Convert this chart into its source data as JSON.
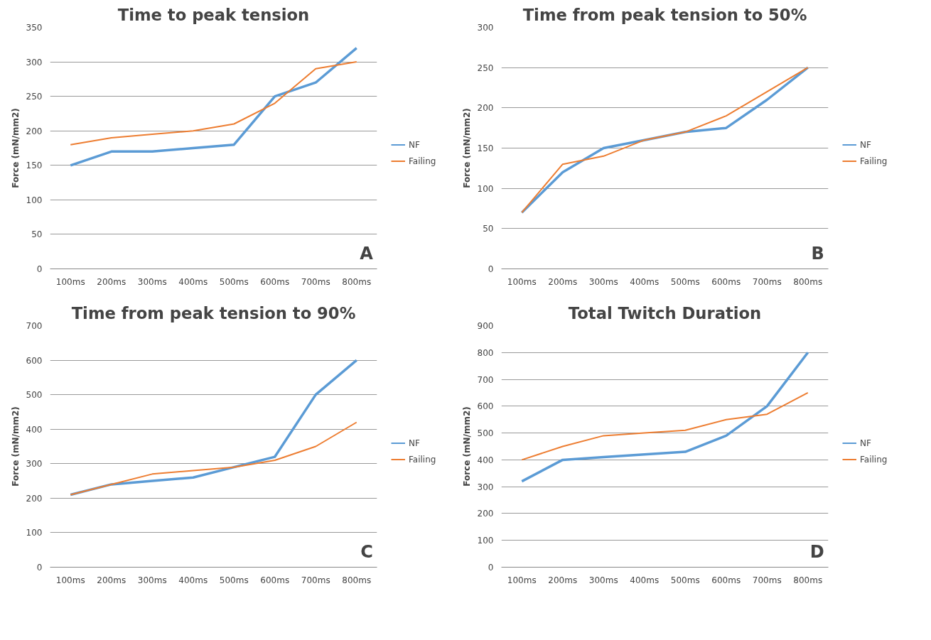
{
  "chart_data": [
    {
      "type": "line",
      "title": "Time to peak tension",
      "ylabel": "Force (mN/mm2)",
      "categories": [
        "100ms",
        "200ms",
        "300ms",
        "400ms",
        "500ms",
        "600ms",
        "700ms",
        "800ms"
      ],
      "series": [
        {
          "name": "NF",
          "color": "#5b9bd5",
          "values": [
            150,
            170,
            170,
            175,
            180,
            250,
            270,
            320
          ]
        },
        {
          "name": "Failing",
          "color": "#ed7d31",
          "values": [
            180,
            190,
            195,
            200,
            210,
            240,
            290,
            300
          ]
        }
      ],
      "ylim": [
        0,
        350
      ],
      "yticks": [
        0,
        50,
        100,
        150,
        200,
        250,
        300,
        350
      ],
      "grid": "y",
      "legend": "right",
      "annotations": [
        "A"
      ]
    },
    {
      "type": "line",
      "title": "Time from peak tension to 50%",
      "ylabel": "Force (mN/mm2)",
      "categories": [
        "100ms",
        "200ms",
        "300ms",
        "400ms",
        "500ms",
        "600ms",
        "700ms",
        "800ms"
      ],
      "series": [
        {
          "name": "NF",
          "color": "#5b9bd5",
          "values": [
            70,
            120,
            150,
            160,
            170,
            175,
            210,
            250
          ]
        },
        {
          "name": "Failing",
          "color": "#ed7d31",
          "values": [
            70,
            130,
            140,
            160,
            170,
            190,
            220,
            250
          ]
        }
      ],
      "ylim": [
        0,
        300
      ],
      "yticks": [
        0,
        50,
        100,
        150,
        200,
        250,
        300
      ],
      "grid": "y",
      "legend": "right",
      "annotations": [
        "B"
      ]
    },
    {
      "type": "line",
      "title": "Time from peak tension to 90%",
      "ylabel": "Force (mN/mm2)",
      "categories": [
        "100ms",
        "200ms",
        "300ms",
        "400ms",
        "500ms",
        "600ms",
        "700ms",
        "800ms"
      ],
      "series": [
        {
          "name": "NF",
          "color": "#5b9bd5",
          "values": [
            210,
            240,
            250,
            260,
            290,
            320,
            500,
            600
          ]
        },
        {
          "name": "Failing",
          "color": "#ed7d31",
          "values": [
            210,
            240,
            270,
            280,
            290,
            310,
            350,
            420
          ]
        }
      ],
      "ylim": [
        0,
        700
      ],
      "yticks": [
        0,
        100,
        200,
        300,
        400,
        500,
        600,
        700
      ],
      "grid": "y",
      "legend": "right",
      "annotations": [
        "C"
      ]
    },
    {
      "type": "line",
      "title": "Total Twitch Duration",
      "ylabel": "Force (mN/mm2)",
      "categories": [
        "100ms",
        "200ms",
        "300ms",
        "400ms",
        "500ms",
        "600ms",
        "700ms",
        "800ms"
      ],
      "series": [
        {
          "name": "NF",
          "color": "#5b9bd5",
          "values": [
            320,
            400,
            410,
            420,
            430,
            490,
            600,
            800
          ]
        },
        {
          "name": "Failing",
          "color": "#ed7d31",
          "values": [
            400,
            450,
            490,
            500,
            510,
            550,
            570,
            650
          ]
        }
      ],
      "ylim": [
        0,
        900
      ],
      "yticks": [
        0,
        100,
        200,
        300,
        400,
        500,
        600,
        700,
        800,
        900
      ],
      "grid": "y",
      "legend": "right",
      "annotations": [
        "D"
      ]
    }
  ]
}
